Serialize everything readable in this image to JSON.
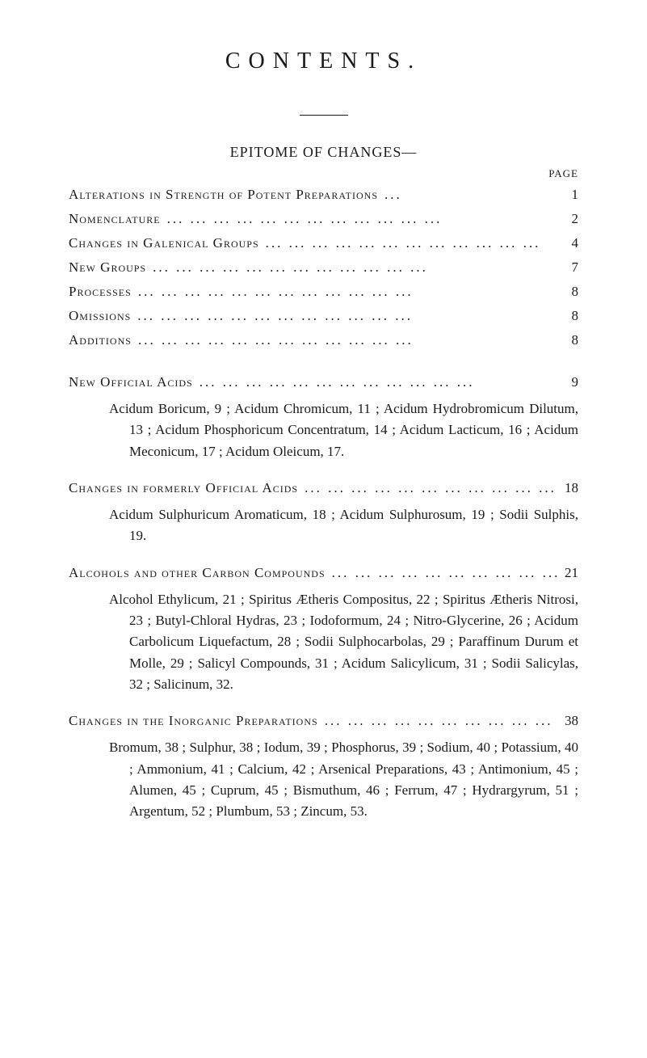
{
  "title": "CONTENTS.",
  "subtitle": "EPITOME OF CHANGES—",
  "page_label": "PAGE",
  "simple_entries": [
    {
      "label": "Alterations in Strength of Potent Preparations",
      "page": "1"
    },
    {
      "label": "Nomenclature",
      "page": "2"
    },
    {
      "label": "Changes in Galenical Groups",
      "page": "4"
    },
    {
      "label": "New Groups",
      "page": "7"
    },
    {
      "label": "Processes",
      "page": "8"
    },
    {
      "label": "Omissions",
      "page": "8"
    },
    {
      "label": "Additions",
      "page": "8"
    }
  ],
  "sections": [
    {
      "heading": "New Official Acids",
      "page": "9",
      "description": "Acidum Boricum, 9 ; Acidum Chromicum, 11 ; Acidum Hydrobromicum Dilutum, 13 ; Acidum Phosphoricum Concentratum, 14 ; Acidum Lacticum, 16 ; Acidum Meconicum, 17 ; Acidum Oleicum, 17."
    },
    {
      "heading": "Changes in formerly Official Acids",
      "page": "18",
      "description": "Acidum Sulphuricum Aromaticum, 18 ; Acidum Sulphurosum, 19 ; Sodii Sulphis, 19."
    },
    {
      "heading": "Alcohols and other Carbon Compounds",
      "page": "21",
      "description": "Alcohol Ethylicum, 21 ; Spiritus Ætheris Compositus, 22 ; Spiritus Ætheris Nitrosi, 23 ; Butyl-Chloral Hydras, 23 ; Iodoformum, 24 ; Nitro-Glycerine, 26 ; Acidum Carbolicum Liquefactum, 28 ; Sodii Sulphocarbolas, 29 ; Paraffinum Durum et Molle, 29 ; Salicyl Compounds, 31 ; Acidum Salicylicum, 31 ; Sodii Salicylas, 32 ; Salicinum, 32."
    },
    {
      "heading": "Changes in the Inorganic Preparations",
      "page": "38",
      "description": "Bromum, 38 ; Sulphur, 38 ; Iodum, 39 ; Phosphorus, 39 ; Sodium, 40 ; Potassium, 40 ; Ammonium, 41 ; Calcium, 42 ; Arsenical Preparations, 43 ; Antimonium, 45 ; Alumen, 45 ; Cuprum, 45 ; Bismuthum, 46 ; Ferrum, 47 ; Hydrargyrum, 51 ; Argentum, 52 ; Plumbum, 53 ; Zincum, 53."
    }
  ],
  "dots": "...   ...   ...   ...   ...   ...   ...   ...   ...   ...   ...   ..."
}
